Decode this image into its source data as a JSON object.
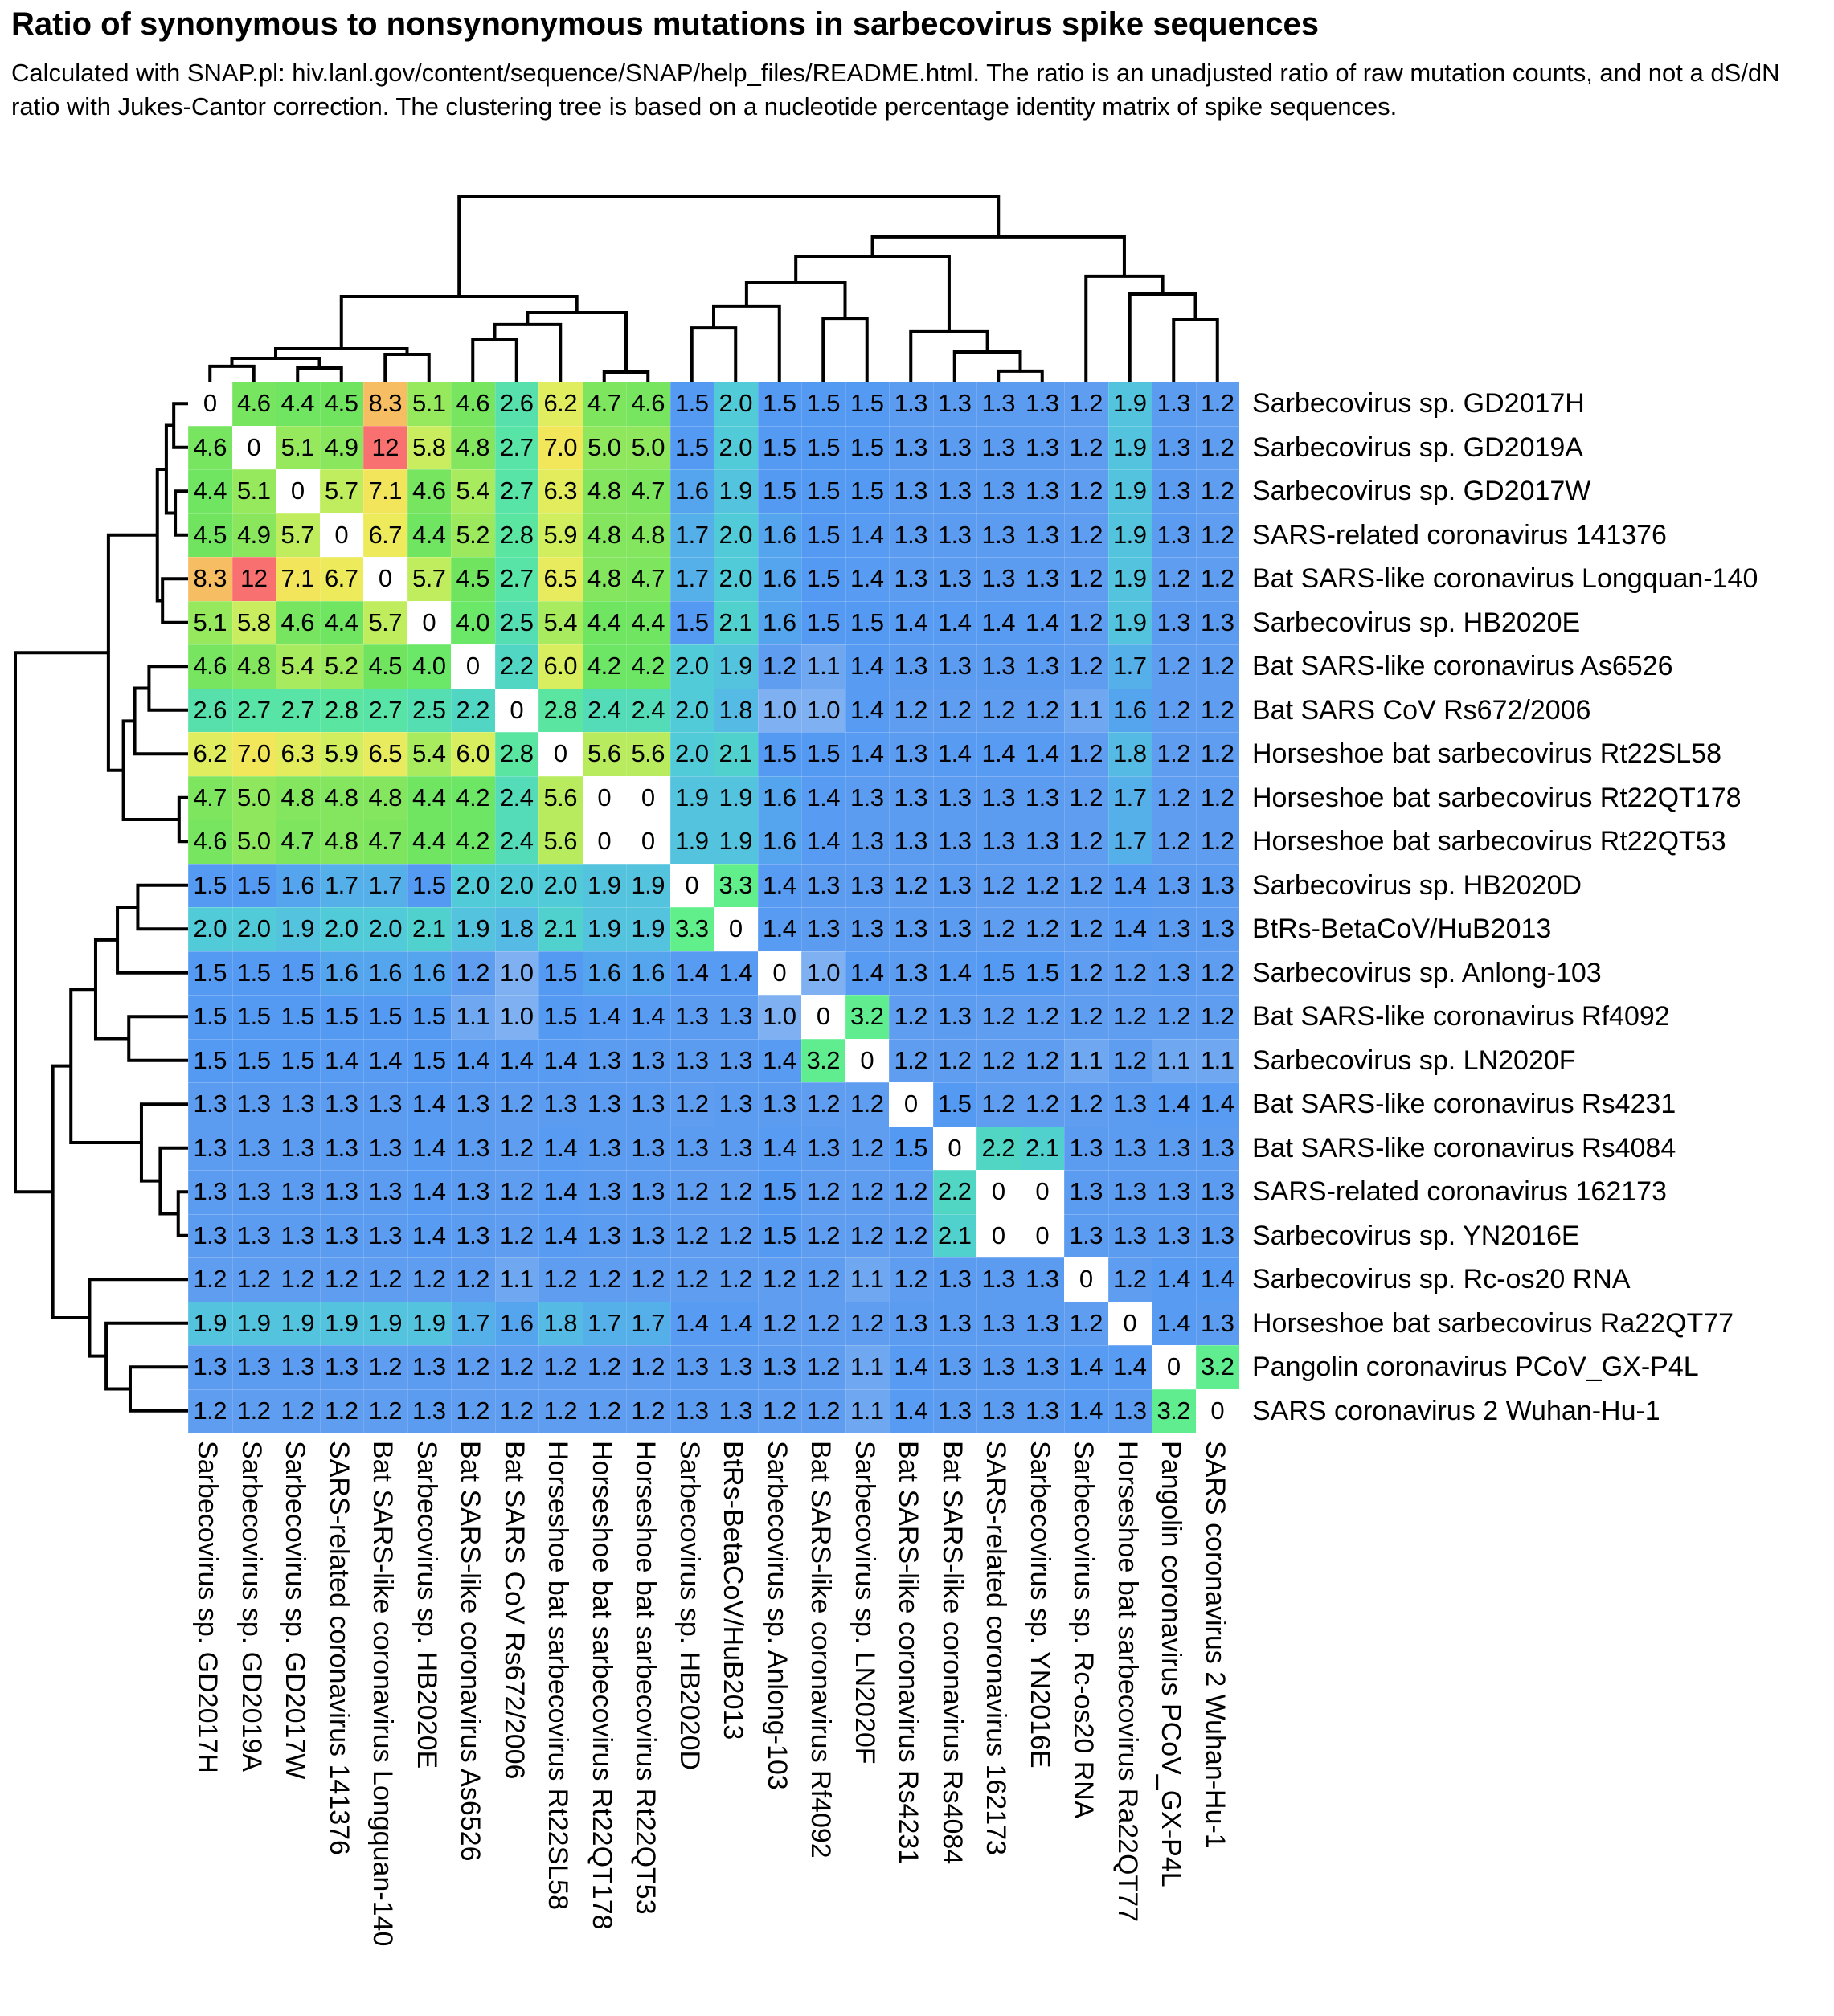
{
  "title": "Ratio of synonymous to nonsynonymous mutations in sarbecovirus spike sequences",
  "subtitle": "Calculated with SNAP.pl: hiv.lanl.gov/content/sequence/SNAP/help_files/README.html. The ratio is an unadjusted ratio of raw mutation counts, and not a dS/dN ratio with Jukes-Cantor correction. The clustering tree is based on a nucleotide percentage identity matrix of spike sequences.",
  "chart_data": {
    "type": "heatmap",
    "title": "Ratio of synonymous to nonsynonymous mutations in sarbecovirus spike sequences",
    "values_shown_in_cells": true,
    "row_dendrogram_position": "left",
    "col_dendrogram_position": "top",
    "dendrogram_color": "#000000",
    "zero_color": "#ffffff",
    "value_range": [
      0,
      12
    ],
    "labels": [
      "Sarbecovirus sp. GD2017H",
      "Sarbecovirus sp. GD2019A",
      "Sarbecovirus sp. GD2017W",
      "SARS-related coronavirus 141376",
      "Bat SARS-like coronavirus Longquan-140",
      "Sarbecovirus sp. HB2020E",
      "Bat SARS-like coronavirus As6526",
      "Bat SARS CoV Rs672/2006",
      "Horseshoe bat sarbecovirus Rt22SL58",
      "Horseshoe bat sarbecovirus Rt22QT178",
      "Horseshoe bat sarbecovirus Rt22QT53",
      "Sarbecovirus sp. HB2020D",
      "BtRs-BetaCoV/HuB2013",
      "Sarbecovirus sp. Anlong-103",
      "Bat SARS-like coronavirus Rf4092",
      "Sarbecovirus sp. LN2020F",
      "Bat SARS-like coronavirus Rs4231",
      "Bat SARS-like coronavirus Rs4084",
      "SARS-related coronavirus 162173",
      "Sarbecovirus sp. YN2016E",
      "Sarbecovirus sp. Rc-os20 RNA",
      "Horseshoe bat sarbecovirus Ra22QT77",
      "Pangolin coronavirus PCoV_GX-P4L",
      "SARS coronavirus 2 Wuhan-Hu-1"
    ],
    "matrix": [
      [
        0,
        4.6,
        4.4,
        4.5,
        8.3,
        5.1,
        4.6,
        2.6,
        6.2,
        4.7,
        4.6,
        1.5,
        2.0,
        1.5,
        1.5,
        1.5,
        1.3,
        1.3,
        1.3,
        1.3,
        1.2,
        1.9,
        1.3,
        1.2
      ],
      [
        4.6,
        0,
        5.1,
        4.9,
        12,
        5.8,
        4.8,
        2.7,
        7.0,
        5.0,
        5.0,
        1.5,
        2.0,
        1.5,
        1.5,
        1.5,
        1.3,
        1.3,
        1.3,
        1.3,
        1.2,
        1.9,
        1.3,
        1.2
      ],
      [
        4.4,
        5.1,
        0,
        5.7,
        7.1,
        4.6,
        5.4,
        2.7,
        6.3,
        4.8,
        4.7,
        1.6,
        1.9,
        1.5,
        1.5,
        1.5,
        1.3,
        1.3,
        1.3,
        1.3,
        1.2,
        1.9,
        1.3,
        1.2
      ],
      [
        4.5,
        4.9,
        5.7,
        0,
        6.7,
        4.4,
        5.2,
        2.8,
        5.9,
        4.8,
        4.8,
        1.7,
        2.0,
        1.6,
        1.5,
        1.4,
        1.3,
        1.3,
        1.3,
        1.3,
        1.2,
        1.9,
        1.3,
        1.2
      ],
      [
        8.3,
        12,
        7.1,
        6.7,
        0,
        5.7,
        4.5,
        2.7,
        6.5,
        4.8,
        4.7,
        1.7,
        2.0,
        1.6,
        1.5,
        1.4,
        1.3,
        1.3,
        1.3,
        1.3,
        1.2,
        1.9,
        1.2,
        1.2
      ],
      [
        5.1,
        5.8,
        4.6,
        4.4,
        5.7,
        0,
        4.0,
        2.5,
        5.4,
        4.4,
        4.4,
        1.5,
        2.1,
        1.6,
        1.5,
        1.5,
        1.4,
        1.4,
        1.4,
        1.4,
        1.2,
        1.9,
        1.3,
        1.3
      ],
      [
        4.6,
        4.8,
        5.4,
        5.2,
        4.5,
        4.0,
        0,
        2.2,
        6.0,
        4.2,
        4.2,
        2.0,
        1.9,
        1.2,
        1.1,
        1.4,
        1.3,
        1.3,
        1.3,
        1.3,
        1.2,
        1.7,
        1.2,
        1.2
      ],
      [
        2.6,
        2.7,
        2.7,
        2.8,
        2.7,
        2.5,
        2.2,
        0,
        2.8,
        2.4,
        2.4,
        2.0,
        1.8,
        1.0,
        1.0,
        1.4,
        1.2,
        1.2,
        1.2,
        1.2,
        1.1,
        1.6,
        1.2,
        1.2
      ],
      [
        6.2,
        7.0,
        6.3,
        5.9,
        6.5,
        5.4,
        6.0,
        2.8,
        0,
        5.6,
        5.6,
        2.0,
        2.1,
        1.5,
        1.5,
        1.4,
        1.3,
        1.4,
        1.4,
        1.4,
        1.2,
        1.8,
        1.2,
        1.2
      ],
      [
        4.7,
        5.0,
        4.8,
        4.8,
        4.8,
        4.4,
        4.2,
        2.4,
        5.6,
        0,
        0,
        1.9,
        1.9,
        1.6,
        1.4,
        1.3,
        1.3,
        1.3,
        1.3,
        1.3,
        1.2,
        1.7,
        1.2,
        1.2
      ],
      [
        4.6,
        5.0,
        4.7,
        4.8,
        4.7,
        4.4,
        4.2,
        2.4,
        5.6,
        0,
        0,
        1.9,
        1.9,
        1.6,
        1.4,
        1.3,
        1.3,
        1.3,
        1.3,
        1.3,
        1.2,
        1.7,
        1.2,
        1.2
      ],
      [
        1.5,
        1.5,
        1.6,
        1.7,
        1.7,
        1.5,
        2.0,
        2.0,
        2.0,
        1.9,
        1.9,
        0,
        3.3,
        1.4,
        1.3,
        1.3,
        1.2,
        1.3,
        1.2,
        1.2,
        1.2,
        1.4,
        1.3,
        1.3
      ],
      [
        2.0,
        2.0,
        1.9,
        2.0,
        2.0,
        2.1,
        1.9,
        1.8,
        2.1,
        1.9,
        1.9,
        3.3,
        0,
        1.4,
        1.3,
        1.3,
        1.3,
        1.3,
        1.2,
        1.2,
        1.2,
        1.4,
        1.3,
        1.3
      ],
      [
        1.5,
        1.5,
        1.5,
        1.6,
        1.6,
        1.6,
        1.2,
        1.0,
        1.5,
        1.6,
        1.6,
        1.4,
        1.4,
        0,
        1.0,
        1.4,
        1.3,
        1.4,
        1.5,
        1.5,
        1.2,
        1.2,
        1.3,
        1.2
      ],
      [
        1.5,
        1.5,
        1.5,
        1.5,
        1.5,
        1.5,
        1.1,
        1.0,
        1.5,
        1.4,
        1.4,
        1.3,
        1.3,
        1.0,
        0,
        3.2,
        1.2,
        1.3,
        1.2,
        1.2,
        1.2,
        1.2,
        1.2,
        1.2
      ],
      [
        1.5,
        1.5,
        1.5,
        1.4,
        1.4,
        1.5,
        1.4,
        1.4,
        1.4,
        1.3,
        1.3,
        1.3,
        1.3,
        1.4,
        3.2,
        0,
        1.2,
        1.2,
        1.2,
        1.2,
        1.1,
        1.2,
        1.1,
        1.1
      ],
      [
        1.3,
        1.3,
        1.3,
        1.3,
        1.3,
        1.4,
        1.3,
        1.2,
        1.3,
        1.3,
        1.3,
        1.2,
        1.3,
        1.3,
        1.2,
        1.2,
        0,
        1.5,
        1.2,
        1.2,
        1.2,
        1.3,
        1.4,
        1.4
      ],
      [
        1.3,
        1.3,
        1.3,
        1.3,
        1.3,
        1.4,
        1.3,
        1.2,
        1.4,
        1.3,
        1.3,
        1.3,
        1.3,
        1.4,
        1.3,
        1.2,
        1.5,
        0,
        2.2,
        2.1,
        1.3,
        1.3,
        1.3,
        1.3
      ],
      [
        1.3,
        1.3,
        1.3,
        1.3,
        1.3,
        1.4,
        1.3,
        1.2,
        1.4,
        1.3,
        1.3,
        1.2,
        1.2,
        1.5,
        1.2,
        1.2,
        1.2,
        2.2,
        0,
        0,
        1.3,
        1.3,
        1.3,
        1.3
      ],
      [
        1.3,
        1.3,
        1.3,
        1.3,
        1.3,
        1.4,
        1.3,
        1.2,
        1.4,
        1.3,
        1.3,
        1.2,
        1.2,
        1.5,
        1.2,
        1.2,
        1.2,
        2.1,
        0,
        0,
        1.3,
        1.3,
        1.3,
        1.3
      ],
      [
        1.2,
        1.2,
        1.2,
        1.2,
        1.2,
        1.2,
        1.2,
        1.1,
        1.2,
        1.2,
        1.2,
        1.2,
        1.2,
        1.2,
        1.2,
        1.1,
        1.2,
        1.3,
        1.3,
        1.3,
        0,
        1.2,
        1.4,
        1.4
      ],
      [
        1.9,
        1.9,
        1.9,
        1.9,
        1.9,
        1.9,
        1.7,
        1.6,
        1.8,
        1.7,
        1.7,
        1.4,
        1.4,
        1.2,
        1.2,
        1.2,
        1.3,
        1.3,
        1.3,
        1.3,
        1.2,
        0,
        1.4,
        1.3
      ],
      [
        1.3,
        1.3,
        1.3,
        1.3,
        1.2,
        1.3,
        1.2,
        1.2,
        1.2,
        1.2,
        1.2,
        1.3,
        1.3,
        1.3,
        1.2,
        1.1,
        1.4,
        1.3,
        1.3,
        1.3,
        1.4,
        1.4,
        0,
        3.2
      ],
      [
        1.2,
        1.2,
        1.2,
        1.2,
        1.2,
        1.3,
        1.2,
        1.2,
        1.2,
        1.2,
        1.2,
        1.3,
        1.3,
        1.2,
        1.2,
        1.1,
        1.4,
        1.3,
        1.3,
        1.3,
        1.4,
        1.3,
        3.2,
        0
      ]
    ],
    "colormap_stops": [
      [
        1.0,
        127,
        177,
        242
      ],
      [
        1.2,
        95,
        157,
        240
      ],
      [
        1.5,
        84,
        154,
        243
      ],
      [
        1.8,
        85,
        187,
        228
      ],
      [
        2.0,
        82,
        203,
        216
      ],
      [
        2.2,
        80,
        214,
        194
      ],
      [
        2.6,
        87,
        224,
        172
      ],
      [
        3.0,
        92,
        234,
        150
      ],
      [
        3.3,
        96,
        239,
        139
      ],
      [
        3.8,
        104,
        233,
        108
      ],
      [
        4.5,
        113,
        228,
        95
      ],
      [
        5.0,
        143,
        231,
        93
      ],
      [
        5.5,
        176,
        236,
        94
      ],
      [
        6.0,
        217,
        238,
        94
      ],
      [
        6.8,
        240,
        233,
        92
      ],
      [
        7.2,
        243,
        226,
        90
      ],
      [
        8.3,
        247,
        189,
        99
      ],
      [
        12,
        248,
        112,
        112
      ]
    ],
    "tree": [
      1.0,
      [
        0.461,
        [
          0.178,
          [
            0.126,
            [
              0.083,
              0,
              1
            ],
            [
              0.074,
              2,
              3
            ]
          ],
          [
            0.148,
            4,
            5
          ]
        ],
        [
          0.374,
          [
            0.309,
            [
              0.226,
              6,
              7
            ],
            8
          ],
          [
            0.052,
            9,
            10
          ]
        ]
      ],
      [
        0.783,
        [
          0.678,
          [
            0.535,
            [
              0.409,
              [
                0.291,
                11,
                12
              ],
              13
            ],
            [
              0.343,
              14,
              15
            ]
          ],
          [
            0.27,
            16,
            [
              0.161,
              17,
              [
                0.057,
                18,
                19
              ]
            ]
          ]
        ],
        [
          0.57,
          20,
          [
            0.474,
            21,
            [
              0.335,
              22,
              23
            ]
          ]
        ]
      ]
    ]
  }
}
